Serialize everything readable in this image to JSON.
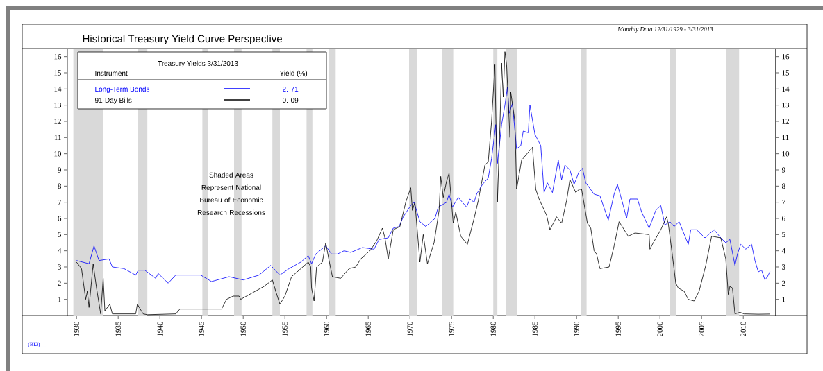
{
  "chart_data": {
    "type": "line",
    "title": "Historical Treasury Yield Curve Perspective",
    "subtitle": "Monthly Data 12/31/1929 - 3/31/2013",
    "legend_title": "Treasury Yields 3/31/2013",
    "legend": "top left",
    "xlim": [
      1928.9,
      2013.9
    ],
    "ylim": [
      0,
      16.5
    ],
    "y2lim": [
      0,
      16.5
    ],
    "xticks": [
      1930,
      1935,
      1940,
      1945,
      1950,
      1955,
      1960,
      1965,
      1970,
      1975,
      1980,
      1985,
      1990,
      1995,
      2000,
      2005,
      2010
    ],
    "yticks": [
      1,
      2,
      3,
      4,
      5,
      6,
      7,
      8,
      9,
      10,
      11,
      12,
      13,
      14,
      15,
      16
    ],
    "y2ticks": [
      1,
      2,
      3,
      4,
      5,
      6,
      7,
      8,
      9,
      10,
      11,
      12,
      13,
      14,
      15,
      16
    ],
    "series": [
      {
        "name": "Long-Term Bonds",
        "color": "#0000ff",
        "x": [
          1930.0,
          1931.5,
          1932.1,
          1932.7,
          1933.9,
          1934.3,
          1935.7,
          1937.1,
          1937.4,
          1938.2,
          1939.5,
          1939.8,
          1941.0,
          1941.9,
          1944.9,
          1946.2,
          1948.3,
          1950.0,
          1951.9,
          1953.3,
          1954.4,
          1955.5,
          1956.9,
          1957.8,
          1958.2,
          1958.7,
          1959.9,
          1960.6,
          1961.3,
          1962.1,
          1962.9,
          1964.3,
          1965.7,
          1966.3,
          1967.4,
          1968.0,
          1968.7,
          1969.2,
          1970.1,
          1970.5,
          1971.2,
          1971.9,
          1973.0,
          1973.4,
          1974.4,
          1974.7,
          1975.1,
          1975.8,
          1976.8,
          1977.2,
          1977.7,
          1978.0,
          1978.7,
          1979.4,
          1979.8,
          1980.3,
          1980.5,
          1981.0,
          1981.4,
          1981.7,
          1981.9,
          1982.3,
          1982.8,
          1983.3,
          1983.6,
          1984.2,
          1984.4,
          1985.0,
          1985.7,
          1986.1,
          1986.5,
          1987.1,
          1987.8,
          1988.2,
          1988.6,
          1989.2,
          1989.7,
          1990.3,
          1990.7,
          1991.1,
          1992.1,
          1992.8,
          1993.8,
          1994.5,
          1994.9,
          1995.6,
          1996.0,
          1996.4,
          1997.3,
          1997.8,
          1998.7,
          1999.5,
          2000.1,
          2000.6,
          2001.2,
          2001.7,
          2002.3,
          2003.4,
          2003.7,
          2004.4,
          2005.4,
          2006.5,
          2007.3,
          2007.9,
          2008.4,
          2009.0,
          2009.3,
          2009.7,
          2010.3,
          2011.0,
          2011.4,
          2011.8,
          2012.2,
          2012.6,
          2012.9,
          2013.2
        ],
        "values": [
          3.4,
          3.2,
          4.3,
          3.4,
          3.5,
          3.0,
          2.9,
          2.5,
          2.8,
          2.8,
          2.3,
          2.6,
          2.0,
          2.5,
          2.5,
          2.1,
          2.4,
          2.2,
          2.5,
          3.1,
          2.5,
          2.9,
          3.3,
          3.7,
          3.2,
          3.8,
          4.3,
          3.8,
          3.8,
          4.0,
          3.9,
          4.2,
          4.1,
          4.7,
          4.8,
          5.4,
          5.5,
          6.1,
          6.8,
          7.0,
          5.8,
          5.5,
          6.0,
          6.7,
          7.0,
          7.5,
          6.7,
          7.3,
          6.7,
          7.2,
          7.0,
          7.5,
          8.1,
          8.5,
          9.7,
          11.8,
          9.4,
          11.8,
          13.0,
          14.1,
          12.5,
          13.1,
          10.3,
          10.5,
          11.4,
          11.3,
          13.0,
          11.2,
          10.5,
          7.6,
          8.2,
          7.6,
          9.6,
          8.4,
          9.3,
          9.0,
          8.1,
          8.9,
          9.1,
          8.2,
          7.5,
          7.4,
          5.9,
          7.5,
          8.1,
          6.8,
          6.0,
          7.2,
          7.2,
          6.4,
          5.4,
          6.5,
          6.8,
          5.6,
          5.8,
          5.5,
          5.8,
          4.4,
          5.3,
          5.3,
          4.8,
          5.3,
          4.8,
          4.5,
          4.7,
          3.1,
          3.8,
          4.4,
          4.1,
          4.4,
          3.4,
          2.7,
          2.8,
          2.2,
          2.4,
          2.71
        ]
      },
      {
        "name": "91-Day Bills",
        "color": "#000000",
        "x": [
          1930.0,
          1930.6,
          1931.1,
          1931.3,
          1931.5,
          1932.0,
          1932.4,
          1932.9,
          1933.2,
          1933.4,
          1934.0,
          1934.3,
          1937.1,
          1937.3,
          1938.0,
          1938.5,
          1941.9,
          1942.4,
          1947.4,
          1948.0,
          1948.8,
          1949.5,
          1949.7,
          1951.1,
          1952.5,
          1953.5,
          1953.9,
          1954.4,
          1955.0,
          1955.8,
          1956.7,
          1957.8,
          1958.1,
          1958.2,
          1958.5,
          1958.8,
          1959.5,
          1959.9,
          1960.3,
          1960.7,
          1961.7,
          1962.7,
          1963.5,
          1964.1,
          1965.2,
          1966.0,
          1966.7,
          1967.0,
          1967.4,
          1968.0,
          1968.8,
          1969.5,
          1970.1,
          1970.3,
          1970.6,
          1971.2,
          1971.6,
          1972.1,
          1972.9,
          1973.5,
          1973.7,
          1974.0,
          1974.4,
          1974.7,
          1975.2,
          1975.5,
          1976.1,
          1976.9,
          1977.7,
          1978.2,
          1979.0,
          1979.4,
          1979.8,
          1980.2,
          1980.5,
          1980.8,
          1981.0,
          1981.2,
          1981.4,
          1981.6,
          1982.0,
          1982.1,
          1982.6,
          1982.8,
          1983.4,
          1984.7,
          1985.1,
          1985.5,
          1986.4,
          1986.8,
          1987.6,
          1988.2,
          1988.8,
          1989.2,
          1989.9,
          1990.3,
          1990.6,
          1991.3,
          1991.7,
          1992.1,
          1992.4,
          1992.8,
          1993.9,
          1994.5,
          1995.1,
          1996.2,
          1997.0,
          1998.7,
          1998.8,
          1999.2,
          2000.1,
          2000.8,
          2001.0,
          2001.5,
          2001.9,
          2002.2,
          2002.9,
          2003.4,
          2004.1,
          2004.7,
          2005.5,
          2006.2,
          2007.3,
          2007.9,
          2008.2,
          2008.4,
          2008.7,
          2009.0,
          2009.6,
          2010.1,
          2011.8,
          2013.2
        ],
        "values": [
          3.3,
          2.9,
          1.0,
          1.5,
          0.5,
          3.2,
          1.7,
          0.1,
          2.3,
          0.3,
          0.7,
          0.1,
          0.1,
          0.7,
          0.1,
          0.05,
          0.1,
          0.4,
          0.4,
          1.0,
          1.2,
          1.2,
          1.0,
          1.4,
          1.8,
          2.2,
          1.5,
          0.7,
          1.2,
          2.4,
          2.8,
          3.3,
          3.0,
          1.7,
          0.9,
          3.0,
          3.3,
          4.5,
          3.4,
          2.4,
          2.3,
          2.9,
          3.0,
          3.5,
          4.0,
          4.6,
          5.4,
          4.8,
          3.5,
          5.3,
          5.5,
          7.0,
          7.9,
          6.5,
          7.0,
          3.3,
          5.0,
          3.2,
          4.5,
          6.5,
          8.6,
          7.3,
          8.3,
          8.8,
          5.7,
          6.4,
          4.9,
          4.4,
          6.0,
          7.1,
          9.3,
          9.5,
          12.0,
          15.5,
          7.0,
          11.7,
          15.6,
          13.5,
          16.3,
          15.5,
          11.0,
          13.8,
          12.0,
          7.8,
          9.6,
          10.4,
          7.8,
          7.2,
          6.2,
          5.3,
          6.1,
          5.7,
          7.1,
          8.4,
          7.6,
          7.8,
          7.8,
          5.7,
          5.4,
          4.0,
          3.8,
          2.9,
          3.0,
          4.3,
          5.8,
          4.9,
          5.1,
          5.0,
          4.1,
          4.5,
          5.3,
          6.1,
          5.7,
          3.7,
          2.0,
          1.7,
          1.5,
          1.0,
          0.9,
          1.5,
          3.1,
          4.9,
          4.8,
          3.5,
          1.3,
          1.8,
          1.7,
          0.1,
          0.2,
          0.1,
          0.08,
          0.09
        ]
      }
    ],
    "bands": [
      {
        "axis": "x",
        "from": 1929.6,
        "to": 1933.2,
        "color": "#d9d9d9"
      },
      {
        "axis": "x",
        "from": 1937.4,
        "to": 1938.5,
        "color": "#d9d9d9"
      },
      {
        "axis": "x",
        "from": 1945.1,
        "to": 1945.8,
        "color": "#d9d9d9"
      },
      {
        "axis": "x",
        "from": 1948.9,
        "to": 1949.8,
        "color": "#d9d9d9"
      },
      {
        "axis": "x",
        "from": 1953.5,
        "to": 1954.4,
        "color": "#d9d9d9"
      },
      {
        "axis": "x",
        "from": 1957.6,
        "to": 1958.3,
        "color": "#d9d9d9"
      },
      {
        "axis": "x",
        "from": 1960.3,
        "to": 1961.1,
        "color": "#d9d9d9"
      },
      {
        "axis": "x",
        "from": 1969.9,
        "to": 1970.9,
        "color": "#d9d9d9"
      },
      {
        "axis": "x",
        "from": 1973.9,
        "to": 1975.2,
        "color": "#d9d9d9"
      },
      {
        "axis": "x",
        "from": 1980.0,
        "to": 1980.5,
        "color": "#d9d9d9"
      },
      {
        "axis": "x",
        "from": 1981.5,
        "to": 1982.9,
        "color": "#d9d9d9"
      },
      {
        "axis": "x",
        "from": 1990.5,
        "to": 1991.2,
        "color": "#d9d9d9"
      },
      {
        "axis": "x",
        "from": 2001.2,
        "to": 2001.9,
        "color": "#d9d9d9"
      },
      {
        "axis": "x",
        "from": 2007.9,
        "to": 2009.5,
        "color": "#d9d9d9"
      }
    ],
    "annotations": [
      "Instrument",
      "Yield (%)",
      "2. 71",
      "0. 09",
      "Shaded Areas Represent National Bureau of Economic Research Recessions",
      "(BI2)"
    ]
  }
}
